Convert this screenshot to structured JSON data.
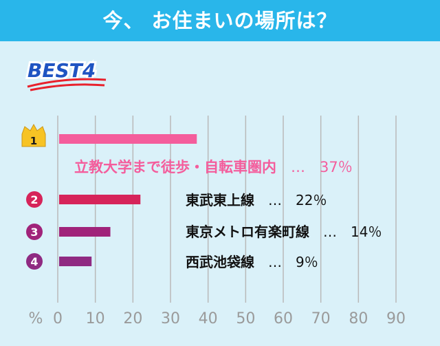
{
  "header": {
    "title": "今、 お住まいの場所は？"
  },
  "badge": {
    "text": "BEST4"
  },
  "colors": {
    "header_bg": "#29b6ea",
    "background": "#daf1f9",
    "grid": "#b9b9b9",
    "axis_text": "#9a9a9a",
    "rank1": "#f45d9c",
    "rank2": "#d6245a",
    "rank3": "#a0237a",
    "rank4": "#8f2a82",
    "badge_blue": "#1f54c2",
    "badge_red": "#e8212c",
    "crown": "#f7c324"
  },
  "chart_data": {
    "type": "bar",
    "orientation": "horizontal",
    "categories": [
      "立教大学まで徒歩・自転車圏内",
      "東武東上線",
      "東京メトロ有楽町線",
      "西武池袋線"
    ],
    "values": [
      37,
      22,
      14,
      9
    ],
    "ranks": [
      "1",
      "2",
      "3",
      "4"
    ],
    "value_labels": [
      "…　37％",
      "…　22％",
      "…　14％",
      "…　9％"
    ],
    "xlabel": "%",
    "xlim": [
      0,
      90
    ],
    "xticks": [
      0,
      10,
      20,
      30,
      40,
      50,
      60,
      70,
      80,
      90
    ],
    "grid": "vertical",
    "rank_icons": [
      "crown-icon",
      "circle-number-icon",
      "circle-number-icon",
      "circle-number-icon"
    ]
  }
}
